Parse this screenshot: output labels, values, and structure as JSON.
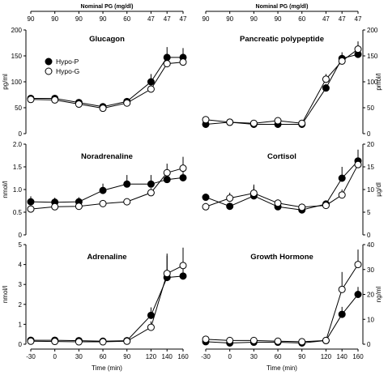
{
  "chart_data": [
    {
      "type": "line",
      "title": "Glucagon",
      "ylabel": "pg/ml",
      "xlabel": "",
      "x": [
        -30,
        0,
        30,
        60,
        90,
        120,
        140,
        160
      ],
      "xticks": [],
      "ylim": [
        0,
        200
      ],
      "yticks": [
        "0",
        "50",
        "100",
        "150",
        "200"
      ],
      "series": [
        {
          "name": "Hypo-P",
          "values": [
            68,
            68,
            60,
            52,
            62,
            100,
            147,
            147
          ],
          "errors": [
            3,
            3,
            3,
            3,
            3,
            15,
            20,
            18
          ]
        },
        {
          "name": "Hypo-G",
          "values": [
            66,
            65,
            57,
            49,
            59,
            86,
            135,
            138
          ],
          "errors": [
            3,
            3,
            3,
            3,
            3,
            5,
            8,
            8
          ]
        }
      ],
      "top_axis": {
        "label": "Nominal PG (mg/dl)",
        "ticks": [
          "90",
          "90",
          "90",
          "90",
          "60",
          "47",
          "47",
          "47"
        ]
      },
      "legend": {
        "entries": [
          "Hypo-P",
          "Hypo-G"
        ],
        "position": "top-left"
      }
    },
    {
      "type": "line",
      "title": "Pancreatic polypeptide",
      "ylabel": "pmol/l",
      "xlabel": "",
      "x": [
        -30,
        0,
        30,
        60,
        90,
        120,
        140,
        160
      ],
      "xticks": [],
      "ylim": [
        0,
        200
      ],
      "yticks": [
        "0",
        "50",
        "100",
        "150",
        "200"
      ],
      "series": [
        {
          "name": "Hypo-P",
          "values": [
            18,
            22,
            18,
            18,
            18,
            88,
            145,
            153
          ],
          "errors": [
            2,
            2,
            2,
            2,
            2,
            8,
            12,
            12
          ]
        },
        {
          "name": "Hypo-G",
          "values": [
            27,
            22,
            20,
            25,
            20,
            105,
            140,
            163
          ],
          "errors": [
            2,
            2,
            2,
            2,
            2,
            10,
            12,
            15
          ]
        }
      ],
      "top_axis": {
        "label": "Nominal PG (mg/dl)",
        "ticks": [
          "90",
          "90",
          "90",
          "90",
          "60",
          "47",
          "47",
          "47"
        ]
      }
    },
    {
      "type": "line",
      "title": "Noradrenaline",
      "ylabel": "nmol/l",
      "xlabel": "",
      "x": [
        -30,
        0,
        30,
        60,
        90,
        120,
        140,
        160
      ],
      "xticks": [],
      "ylim": [
        0,
        2.0
      ],
      "yticks": [
        "0",
        "0.5",
        "1.0",
        "1.5",
        "2.0"
      ],
      "series": [
        {
          "name": "Hypo-P",
          "values": [
            0.73,
            0.72,
            0.73,
            0.98,
            1.12,
            1.12,
            1.22,
            1.26
          ],
          "errors": [
            0.12,
            0.1,
            0.1,
            0.15,
            0.2,
            0.2,
            0.2,
            0.2
          ]
        },
        {
          "name": "Hypo-G",
          "values": [
            0.57,
            0.62,
            0.63,
            0.69,
            0.73,
            0.93,
            1.37,
            1.47
          ],
          "errors": [
            0.05,
            0.05,
            0.05,
            0.05,
            0.05,
            0.1,
            0.2,
            0.25
          ]
        }
      ]
    },
    {
      "type": "line",
      "title": "Cortisol",
      "ylabel": "µg/dl",
      "xlabel": "",
      "x": [
        -30,
        0,
        30,
        60,
        90,
        120,
        140,
        160
      ],
      "xticks": [],
      "ylim": [
        0,
        20
      ],
      "yticks": [
        "0",
        "5",
        "10",
        "15",
        "20"
      ],
      "series": [
        {
          "name": "Hypo-P",
          "values": [
            8.3,
            6.3,
            8.6,
            6.2,
            5.5,
            6.8,
            12.5,
            16.3
          ],
          "errors": [
            0.8,
            0.8,
            2.5,
            0.8,
            0.8,
            0.8,
            2.5,
            2.5
          ]
        },
        {
          "name": "Hypo-G",
          "values": [
            6.2,
            8.1,
            9.2,
            7.0,
            6.1,
            6.5,
            8.8,
            15.5
          ],
          "errors": [
            0.8,
            1.2,
            1.5,
            0.8,
            0.8,
            0.8,
            1.2,
            2.0
          ]
        }
      ]
    },
    {
      "type": "line",
      "title": "Adrenaline",
      "ylabel": "nmol/l",
      "xlabel": "Time (min)",
      "x": [
        -30,
        0,
        30,
        60,
        90,
        120,
        140,
        160
      ],
      "xticks": [
        "-30",
        "0",
        "30",
        "60",
        "90",
        "120",
        "140",
        "160"
      ],
      "ylim": [
        0,
        5
      ],
      "yticks": [
        "0",
        "1",
        "2",
        "3",
        "4",
        "5"
      ],
      "series": [
        {
          "name": "Hypo-P",
          "values": [
            0.2,
            0.2,
            0.18,
            0.15,
            0.18,
            1.45,
            3.35,
            3.42
          ],
          "errors": [
            0.05,
            0.05,
            0.05,
            0.05,
            0.05,
            0.4,
            1.1,
            1.3
          ]
        },
        {
          "name": "Hypo-G",
          "values": [
            0.15,
            0.14,
            0.12,
            0.12,
            0.15,
            0.85,
            3.55,
            3.95
          ],
          "errors": [
            0.05,
            0.05,
            0.05,
            0.05,
            0.05,
            0.3,
            1.0,
            0.9
          ]
        }
      ]
    },
    {
      "type": "line",
      "title": "Growth Hormone",
      "ylabel": "ng/ml",
      "xlabel": "Time (min)",
      "x": [
        -30,
        0,
        30,
        60,
        90,
        120,
        140,
        160
      ],
      "xticks": [
        "-30",
        "0",
        "30",
        "60",
        "90",
        "120",
        "140",
        "160"
      ],
      "ylim": [
        0,
        40
      ],
      "yticks": [
        "0",
        "10",
        "20",
        "30",
        "40"
      ],
      "series": [
        {
          "name": "Hypo-P",
          "values": [
            1.0,
            0.5,
            0.8,
            0.8,
            0.5,
            1.5,
            12.0,
            20.0
          ],
          "errors": [
            0.5,
            0.5,
            0.5,
            0.5,
            0.5,
            1.0,
            3.0,
            3.0
          ]
        },
        {
          "name": "Hypo-G",
          "values": [
            2.0,
            1.5,
            1.5,
            1.2,
            1.0,
            1.5,
            22.0,
            32.0
          ],
          "errors": [
            0.5,
            0.5,
            0.5,
            0.5,
            0.5,
            1.0,
            7.0,
            6.0
          ]
        }
      ]
    }
  ]
}
